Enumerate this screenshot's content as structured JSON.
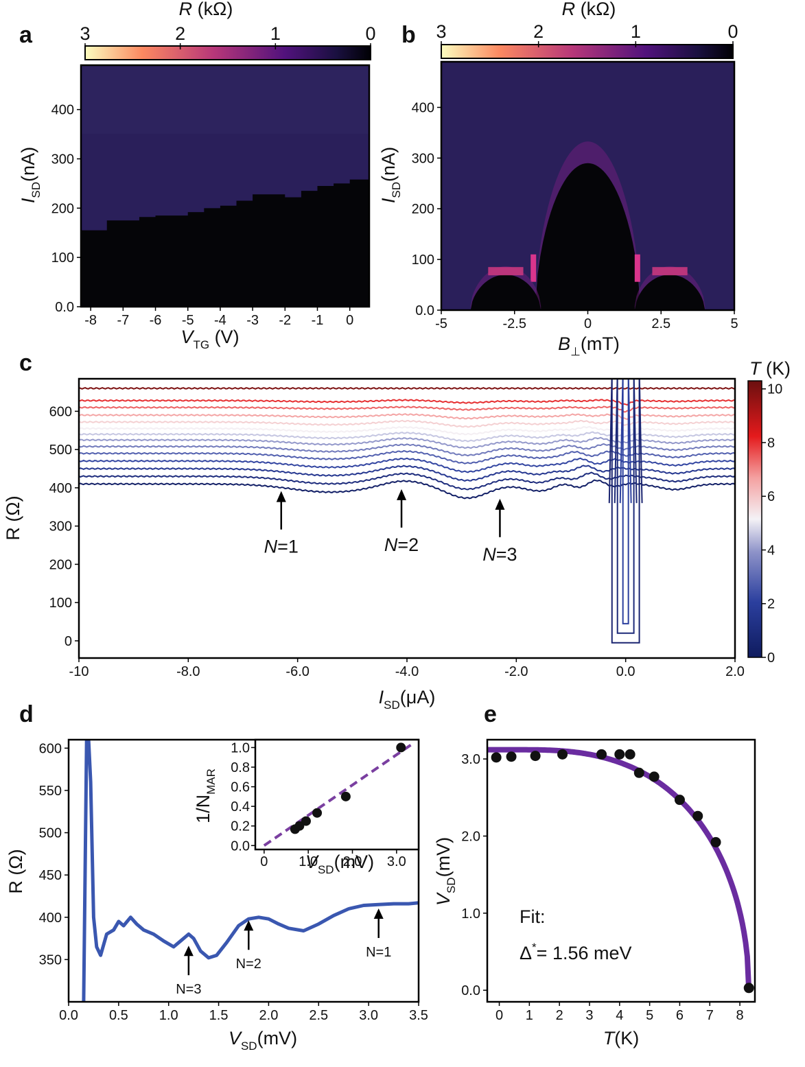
{
  "figure": {
    "panel_labels": [
      "a",
      "b",
      "c",
      "d",
      "e"
    ]
  },
  "chart_data": [
    {
      "id": "a",
      "type": "heatmap",
      "colorbar": {
        "label": "R (kΩ)",
        "label_var": "R",
        "label_unit": " (kΩ)",
        "ticks": [
          "3",
          "2",
          "1",
          "0"
        ],
        "range": [
          3,
          0
        ]
      },
      "xlabel": "V_TG (V)",
      "xlabel_var": "V",
      "xlabel_sub": "TG",
      "xlabel_unit": " (V)",
      "ylabel": "I_SD(nA)",
      "ylabel_var": "I",
      "ylabel_sub": "SD",
      "ylabel_unit": "(nA)",
      "xlim": [
        -8.3,
        0.6
      ],
      "ylim": [
        0,
        490
      ],
      "xticks": [
        "-8",
        "-7",
        "-6",
        "-5",
        "-4",
        "-3",
        "-2",
        "-1",
        "0"
      ],
      "yticks": [
        "0.0",
        "100",
        "200",
        "300",
        "400"
      ],
      "switching_current": {
        "x": [
          -8.3,
          -8.0,
          -7.5,
          -7.0,
          -6.5,
          -6.0,
          -5.5,
          -5.0,
          -4.5,
          -4.0,
          -3.5,
          -3.0,
          -2.5,
          -2.0,
          -1.5,
          -1.0,
          -0.5,
          0.0,
          0.6
        ],
        "y": [
          155,
          155,
          175,
          175,
          182,
          185,
          185,
          192,
          200,
          205,
          215,
          228,
          228,
          222,
          235,
          245,
          250,
          258,
          258
        ]
      }
    },
    {
      "id": "b",
      "type": "heatmap",
      "colorbar": {
        "label": "R (kΩ)",
        "label_var": "R",
        "label_unit": " (kΩ)",
        "ticks": [
          "3",
          "2",
          "1",
          "0"
        ],
        "range": [
          3,
          0
        ]
      },
      "xlabel": "B⊥(mT)",
      "xlabel_var": "B",
      "xlabel_sub": "⊥",
      "xlabel_unit": "(mT)",
      "ylabel": "I_SD(nA)",
      "ylabel_var": "I",
      "ylabel_sub": "SD",
      "ylabel_unit": "(nA)",
      "xlim": [
        -5,
        5
      ],
      "ylim": [
        0,
        490
      ],
      "xticks": [
        "-5",
        "-2.5",
        "0",
        "2.5",
        "5"
      ],
      "yticks": [
        "0.0",
        "100",
        "200",
        "300",
        "400"
      ],
      "lobes": [
        {
          "center": 0,
          "halfwidth": 1.8,
          "height": 290
        },
        {
          "center": -2.8,
          "halfwidth": 1.2,
          "height": 70
        },
        {
          "center": 2.8,
          "halfwidth": 1.2,
          "height": 70
        }
      ]
    },
    {
      "id": "c",
      "type": "line",
      "xlabel": "I_SD(μA)",
      "xlabel_var": "I",
      "xlabel_sub": "SD",
      "xlabel_unit": "(μA)",
      "ylabel": "R (Ω)",
      "xlim": [
        -10,
        2
      ],
      "ylim": [
        -45,
        685
      ],
      "xticks": [
        "-10",
        "-8.0",
        "-6.0",
        "-4.0",
        "-2.0",
        "0.0",
        "2.0"
      ],
      "yticks": [
        "0",
        "100",
        "200",
        "300",
        "400",
        "500",
        "600"
      ],
      "colorbar": {
        "label": "T (K)",
        "label_var": "T",
        "label_unit": " (K)",
        "ticks": [
          "0",
          "2",
          "4",
          "6",
          "8",
          "10"
        ],
        "range": [
          0,
          10.3
        ]
      },
      "series": [
        {
          "T": 0.3,
          "base": 410,
          "dips": true
        },
        {
          "T": 1.0,
          "base": 430,
          "dips": true
        },
        {
          "T": 1.6,
          "base": 450,
          "dips": true
        },
        {
          "T": 2.2,
          "base": 470,
          "dips": true
        },
        {
          "T": 2.8,
          "base": 490,
          "dips": true
        },
        {
          "T": 3.4,
          "base": 508,
          "dips": true
        },
        {
          "T": 4.0,
          "base": 525,
          "dips": true
        },
        {
          "T": 4.6,
          "base": 540,
          "dips": true
        },
        {
          "T": 5.2,
          "base": 555,
          "dips": true
        },
        {
          "T": 5.8,
          "base": 572,
          "dips": true
        },
        {
          "T": 6.6,
          "base": 590,
          "dips": true
        },
        {
          "T": 7.4,
          "base": 610,
          "dips": true
        },
        {
          "T": 8.0,
          "base": 628,
          "dips": true
        },
        {
          "T": 10.0,
          "base": 660,
          "dips": false
        }
      ],
      "annotations": [
        {
          "var": "N",
          "text": "=1",
          "x": -6.3,
          "y": 395
        },
        {
          "var": "N",
          "text": "=2",
          "x": -4.1,
          "y": 400
        },
        {
          "var": "N",
          "text": "=3",
          "x": -2.3,
          "y": 375
        }
      ]
    },
    {
      "id": "d",
      "type": "line",
      "xlabel": "V_SD(mV)",
      "xlabel_var": "V",
      "xlabel_sub": "SD",
      "xlabel_unit": "(mV)",
      "ylabel": "R (Ω)",
      "xlim": [
        0,
        3.5
      ],
      "ylim": [
        300,
        610
      ],
      "xticks": [
        "0.0",
        "0.5",
        "1.0",
        "1.5",
        "2.0",
        "2.5",
        "3.0",
        "3.5"
      ],
      "yticks": [
        "350",
        "400",
        "450",
        "500",
        "550",
        "600"
      ],
      "series": [
        {
          "name": "R(V_SD)",
          "x": [
            0.15,
            0.18,
            0.2,
            0.22,
            0.25,
            0.28,
            0.32,
            0.38,
            0.45,
            0.5,
            0.55,
            0.62,
            0.68,
            0.75,
            0.85,
            0.95,
            1.05,
            1.12,
            1.2,
            1.25,
            1.32,
            1.4,
            1.48,
            1.58,
            1.7,
            1.8,
            1.9,
            2.0,
            2.1,
            2.2,
            2.35,
            2.5,
            2.65,
            2.8,
            2.95,
            3.1,
            3.25,
            3.4,
            3.5
          ],
          "y": [
            300,
            610,
            610,
            560,
            400,
            365,
            355,
            380,
            385,
            395,
            390,
            400,
            392,
            385,
            380,
            372,
            365,
            372,
            380,
            375,
            360,
            352,
            355,
            370,
            390,
            398,
            400,
            398,
            392,
            387,
            384,
            392,
            402,
            410,
            414,
            415,
            416,
            416,
            417
          ]
        }
      ],
      "annotations": [
        {
          "text": "N=3",
          "x": 1.2,
          "y": 368
        },
        {
          "text": "N=2",
          "x": 1.8,
          "y": 398
        },
        {
          "text": "N=1",
          "x": 3.1,
          "y": 412
        }
      ],
      "inset": {
        "type": "scatter",
        "xlabel": "V_SD(mV)",
        "xlabel_var": "V",
        "xlabel_sub": "SD",
        "xlabel_unit": "(mV)",
        "ylabel": "1/N_MAR",
        "ylabel_var": "1/N",
        "ylabel_sub": "MAR",
        "xlim": [
          -0.2,
          3.5
        ],
        "ylim": [
          -0.04,
          1.08
        ],
        "xticks": [
          "0",
          "1.0",
          "2.0",
          "3.0"
        ],
        "yticks": [
          "0.0",
          "0.2",
          "0.4",
          "0.6",
          "0.8",
          "1.0"
        ],
        "points": {
          "x": [
            0.7,
            0.8,
            0.95,
            1.2,
            1.85,
            3.1
          ],
          "y": [
            0.167,
            0.2,
            0.25,
            0.333,
            0.5,
            1.0
          ]
        },
        "fit": {
          "x": [
            0.0,
            3.4
          ],
          "y": [
            0.0,
            1.05
          ]
        }
      }
    },
    {
      "id": "e",
      "type": "scatter",
      "xlabel": "T(K)",
      "xlabel_var": "T",
      "xlabel_unit": "(K)",
      "ylabel": "V_SD(mV)",
      "ylabel_var": "V",
      "ylabel_sub": "SD",
      "ylabel_unit": "(mV)",
      "xlim": [
        -0.4,
        8.5
      ],
      "ylim": [
        -0.15,
        3.25
      ],
      "xticks": [
        "0",
        "1",
        "2",
        "3",
        "4",
        "5",
        "6",
        "7",
        "8"
      ],
      "yticks": [
        "0.0",
        "1.0",
        "2.0",
        "3.0"
      ],
      "points": {
        "x": [
          -0.1,
          0.4,
          1.2,
          2.1,
          3.4,
          4.0,
          4.35,
          4.65,
          5.15,
          6.0,
          6.6,
          7.2,
          8.3
        ],
        "y": [
          3.02,
          3.03,
          3.04,
          3.06,
          3.06,
          3.06,
          3.06,
          2.82,
          2.77,
          2.47,
          2.26,
          1.92,
          0.03
        ]
      },
      "fit": {
        "model": "BCS gap",
        "delta_mV": 3.12,
        "Tc": 8.3
      },
      "annotation": {
        "line1": "Fit:",
        "delta_symbol": "Δ",
        "delta_sup": "*",
        "line2_rest": "= 1.56 meV"
      }
    }
  ]
}
